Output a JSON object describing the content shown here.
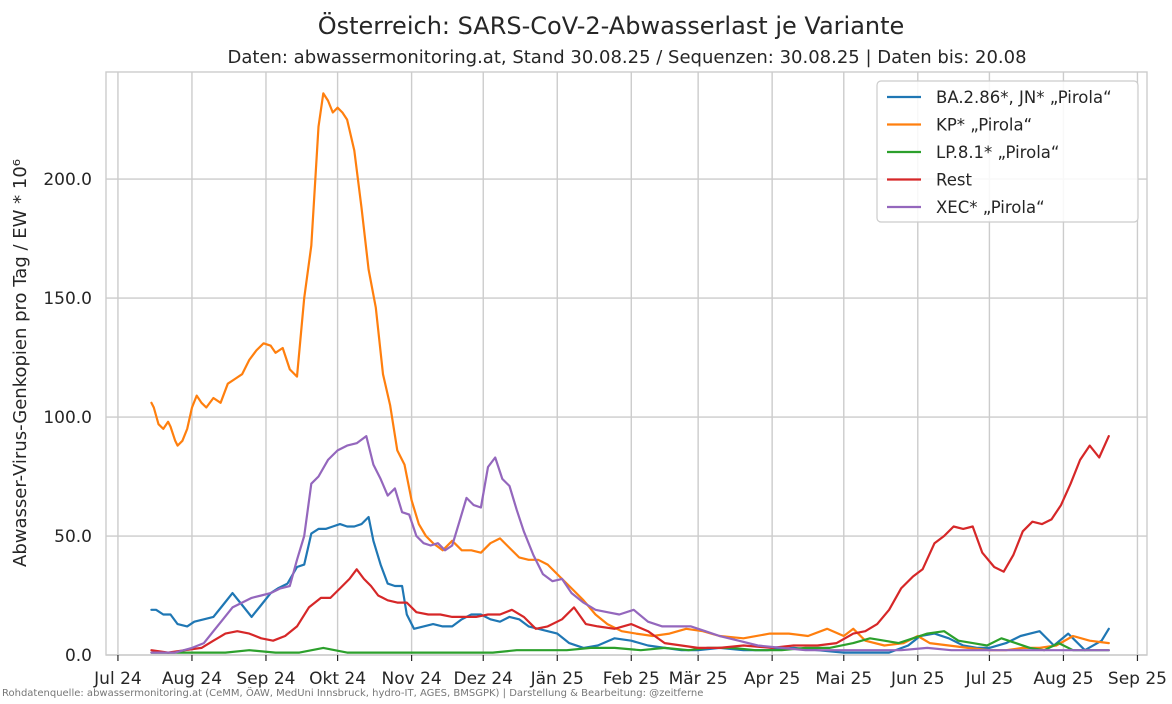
{
  "chart_data": {
    "type": "line",
    "title": "Österreich: SARS-CoV-2-Abwasserlast je Variante",
    "subtitle": "Daten: abwassermonitoring.at, Stand 30.08.25 / Sequenzen: 30.08.25 | Daten bis: 20.08",
    "ylabel": "Abwasser-Virus-Genkopien pro Tag / EW * 10⁶",
    "xlabel": "",
    "source_note": "Rohdatenquelle: abwassermonitoring.at (CeMM, ÖAW, MedUni Innsbruck, hydro-IT, AGES, BMSGPK) | Darstellung & Bearbeitung: @zeitferne",
    "xlim": [
      "2024-06-26",
      "2025-09-05"
    ],
    "ylim": [
      0,
      245
    ],
    "x_ticks": [
      {
        "date": "2024-07-01",
        "label": "Jul 24"
      },
      {
        "date": "2024-08-01",
        "label": "Aug 24"
      },
      {
        "date": "2024-09-01",
        "label": "Sep 24"
      },
      {
        "date": "2024-10-01",
        "label": "Okt 24"
      },
      {
        "date": "2024-11-01",
        "label": "Nov 24"
      },
      {
        "date": "2024-12-01",
        "label": "Dez 24"
      },
      {
        "date": "2025-01-01",
        "label": "Jän 25"
      },
      {
        "date": "2025-02-01",
        "label": "Feb 25"
      },
      {
        "date": "2025-03-01",
        "label": "Mär 25"
      },
      {
        "date": "2025-04-01",
        "label": "Apr 25"
      },
      {
        "date": "2025-05-01",
        "label": "Mai 25"
      },
      {
        "date": "2025-06-01",
        "label": "Jun 25"
      },
      {
        "date": "2025-07-01",
        "label": "Jul 25"
      },
      {
        "date": "2025-08-01",
        "label": "Aug 25"
      },
      {
        "date": "2025-09-01",
        "label": "Sep 25"
      }
    ],
    "y_ticks": [
      {
        "value": 0,
        "label": "0.0"
      },
      {
        "value": 50,
        "label": "50.0"
      },
      {
        "value": 100,
        "label": "100.0"
      },
      {
        "value": 150,
        "label": "150.0"
      },
      {
        "value": 200,
        "label": "200.0"
      }
    ],
    "grid": true,
    "legend_position": "top-right",
    "series": [
      {
        "name": "BA.2.86*, JN* „Pirola“",
        "color": "#1f77b4",
        "x": [
          "2024-07-15",
          "2024-07-17",
          "2024-07-20",
          "2024-07-23",
          "2024-07-26",
          "2024-07-30",
          "2024-08-02",
          "2024-08-06",
          "2024-08-10",
          "2024-08-14",
          "2024-08-18",
          "2024-08-22",
          "2024-08-26",
          "2024-08-30",
          "2024-09-03",
          "2024-09-06",
          "2024-09-10",
          "2024-09-14",
          "2024-09-17",
          "2024-09-20",
          "2024-09-23",
          "2024-09-26",
          "2024-09-29",
          "2024-10-02",
          "2024-10-05",
          "2024-10-08",
          "2024-10-11",
          "2024-10-14",
          "2024-10-16",
          "2024-10-19",
          "2024-10-22",
          "2024-10-25",
          "2024-10-28",
          "2024-10-30",
          "2024-11-02",
          "2024-11-06",
          "2024-11-10",
          "2024-11-14",
          "2024-11-18",
          "2024-11-22",
          "2024-11-26",
          "2024-11-30",
          "2024-12-04",
          "2024-12-08",
          "2024-12-12",
          "2024-12-16",
          "2024-12-20",
          "2024-12-24",
          "2024-12-28",
          "2025-01-01",
          "2025-01-06",
          "2025-01-12",
          "2025-01-18",
          "2025-01-25",
          "2025-02-01",
          "2025-02-08",
          "2025-02-15",
          "2025-02-22",
          "2025-03-01",
          "2025-03-10",
          "2025-03-20",
          "2025-03-30",
          "2025-04-10",
          "2025-04-20",
          "2025-05-01",
          "2025-05-10",
          "2025-05-20",
          "2025-05-28",
          "2025-06-02",
          "2025-06-08",
          "2025-06-14",
          "2025-06-20",
          "2025-06-26",
          "2025-07-01",
          "2025-07-08",
          "2025-07-14",
          "2025-07-22",
          "2025-07-28",
          "2025-08-03",
          "2025-08-10",
          "2025-08-17",
          "2025-08-20"
        ],
        "values": [
          19,
          19,
          17,
          17,
          13,
          12,
          14,
          15,
          16,
          21,
          26,
          21,
          16,
          21,
          26,
          28,
          30,
          37,
          38,
          51,
          53,
          53,
          54,
          55,
          54,
          54,
          55,
          58,
          48,
          38,
          30,
          29,
          29,
          17,
          11,
          12,
          13,
          12,
          12,
          15,
          17,
          17,
          15,
          14,
          16,
          15,
          12,
          11,
          10,
          9,
          5,
          3,
          4,
          7,
          6,
          4,
          3,
          2,
          2,
          3,
          2,
          2,
          3,
          2,
          1,
          1,
          1,
          4,
          8,
          9,
          7,
          4,
          3,
          3,
          5,
          8,
          10,
          4,
          9,
          2,
          6,
          11
        ]
      },
      {
        "name": "KP* „Pirola“",
        "color": "#ff7f0e",
        "x": [
          "2024-07-15",
          "2024-07-16",
          "2024-07-18",
          "2024-07-20",
          "2024-07-22",
          "2024-07-23",
          "2024-07-25",
          "2024-07-26",
          "2024-07-28",
          "2024-07-30",
          "2024-08-01",
          "2024-08-03",
          "2024-08-05",
          "2024-08-07",
          "2024-08-10",
          "2024-08-13",
          "2024-08-16",
          "2024-08-19",
          "2024-08-22",
          "2024-08-25",
          "2024-08-28",
          "2024-08-31",
          "2024-09-03",
          "2024-09-05",
          "2024-09-08",
          "2024-09-11",
          "2024-09-14",
          "2024-09-17",
          "2024-09-20",
          "2024-09-23",
          "2024-09-25",
          "2024-09-27",
          "2024-09-29",
          "2024-10-01",
          "2024-10-03",
          "2024-10-05",
          "2024-10-08",
          "2024-10-11",
          "2024-10-14",
          "2024-10-17",
          "2024-10-20",
          "2024-10-23",
          "2024-10-26",
          "2024-10-29",
          "2024-11-01",
          "2024-11-04",
          "2024-11-07",
          "2024-11-10",
          "2024-11-14",
          "2024-11-18",
          "2024-11-22",
          "2024-11-26",
          "2024-11-30",
          "2024-12-04",
          "2024-12-08",
          "2024-12-12",
          "2024-12-16",
          "2024-12-20",
          "2024-12-24",
          "2024-12-28",
          "2025-01-02",
          "2025-01-07",
          "2025-01-12",
          "2025-01-17",
          "2025-01-22",
          "2025-01-28",
          "2025-02-03",
          "2025-02-10",
          "2025-02-17",
          "2025-02-24",
          "2025-03-03",
          "2025-03-10",
          "2025-03-20",
          "2025-03-31",
          "2025-04-08",
          "2025-04-16",
          "2025-04-24",
          "2025-05-01",
          "2025-05-05",
          "2025-05-10",
          "2025-05-18",
          "2025-05-26",
          "2025-06-01",
          "2025-06-06",
          "2025-06-14",
          "2025-06-22",
          "2025-07-01",
          "2025-07-08",
          "2025-07-15",
          "2025-07-22",
          "2025-07-29",
          "2025-08-05",
          "2025-08-12",
          "2025-08-20"
        ],
        "values": [
          106,
          104,
          97,
          95,
          98,
          96,
          90,
          88,
          90,
          95,
          104,
          109,
          106,
          104,
          108,
          106,
          114,
          116,
          118,
          124,
          128,
          131,
          130,
          127,
          129,
          120,
          117,
          150,
          172,
          222,
          236,
          233,
          228,
          230,
          228,
          225,
          212,
          188,
          162,
          146,
          118,
          105,
          86,
          80,
          65,
          55,
          50,
          47,
          44,
          48,
          44,
          44,
          43,
          47,
          49,
          45,
          41,
          40,
          40,
          38,
          33,
          28,
          23,
          17,
          13,
          10,
          9,
          8,
          9,
          11,
          10,
          8,
          7,
          9,
          9,
          8,
          11,
          8,
          11,
          6,
          4,
          5,
          8,
          5,
          4,
          3,
          2,
          2,
          3,
          3,
          4,
          8,
          6,
          5
        ]
      },
      {
        "name": "LP.8.1* „Pirola“",
        "color": "#2ca02c",
        "x": [
          "2024-07-15",
          "2024-07-25",
          "2024-08-05",
          "2024-08-15",
          "2024-08-25",
          "2024-09-05",
          "2024-09-15",
          "2024-09-25",
          "2024-10-05",
          "2024-10-15",
          "2024-10-25",
          "2024-11-05",
          "2024-11-15",
          "2024-11-25",
          "2024-12-05",
          "2024-12-15",
          "2024-12-25",
          "2025-01-05",
          "2025-01-15",
          "2025-01-25",
          "2025-02-05",
          "2025-02-15",
          "2025-02-25",
          "2025-03-05",
          "2025-03-15",
          "2025-03-25",
          "2025-04-05",
          "2025-04-15",
          "2025-04-25",
          "2025-05-05",
          "2025-05-12",
          "2025-05-18",
          "2025-05-24",
          "2025-05-30",
          "2025-06-05",
          "2025-06-12",
          "2025-06-18",
          "2025-06-24",
          "2025-06-30",
          "2025-07-06",
          "2025-07-12",
          "2025-07-18",
          "2025-07-24",
          "2025-07-30",
          "2025-08-05",
          "2025-08-12",
          "2025-08-20"
        ],
        "values": [
          1,
          1,
          1,
          1,
          2,
          1,
          1,
          3,
          1,
          1,
          1,
          1,
          1,
          1,
          1,
          2,
          2,
          2,
          3,
          3,
          2,
          3,
          2,
          3,
          3,
          2,
          2,
          3,
          3,
          5,
          7,
          6,
          5,
          7,
          9,
          10,
          6,
          5,
          4,
          7,
          5,
          3,
          2,
          5,
          2,
          2,
          2
        ]
      },
      {
        "name": "Rest",
        "color": "#d62728",
        "x": [
          "2024-07-15",
          "2024-07-22",
          "2024-07-29",
          "2024-08-05",
          "2024-08-10",
          "2024-08-15",
          "2024-08-20",
          "2024-08-25",
          "2024-08-30",
          "2024-09-04",
          "2024-09-09",
          "2024-09-14",
          "2024-09-19",
          "2024-09-24",
          "2024-09-28",
          "2024-10-02",
          "2024-10-06",
          "2024-10-09",
          "2024-10-12",
          "2024-10-15",
          "2024-10-18",
          "2024-10-22",
          "2024-10-26",
          "2024-10-30",
          "2024-11-03",
          "2024-11-08",
          "2024-11-13",
          "2024-11-18",
          "2024-11-23",
          "2024-11-28",
          "2024-12-03",
          "2024-12-08",
          "2024-12-13",
          "2024-12-18",
          "2024-12-23",
          "2024-12-28",
          "2025-01-03",
          "2025-01-08",
          "2025-01-13",
          "2025-01-18",
          "2025-01-25",
          "2025-02-01",
          "2025-02-08",
          "2025-02-15",
          "2025-02-22",
          "2025-03-01",
          "2025-03-10",
          "2025-03-20",
          "2025-04-01",
          "2025-04-10",
          "2025-04-20",
          "2025-04-28",
          "2025-05-05",
          "2025-05-10",
          "2025-05-15",
          "2025-05-20",
          "2025-05-25",
          "2025-05-30",
          "2025-06-03",
          "2025-06-08",
          "2025-06-12",
          "2025-06-16",
          "2025-06-20",
          "2025-06-24",
          "2025-06-28",
          "2025-07-03",
          "2025-07-07",
          "2025-07-11",
          "2025-07-15",
          "2025-07-19",
          "2025-07-23",
          "2025-07-27",
          "2025-07-31",
          "2025-08-04",
          "2025-08-08",
          "2025-08-12",
          "2025-08-16",
          "2025-08-20"
        ],
        "values": [
          2,
          1,
          2,
          3,
          6,
          9,
          10,
          9,
          7,
          6,
          8,
          12,
          20,
          24,
          24,
          28,
          32,
          36,
          32,
          29,
          25,
          23,
          22,
          22,
          18,
          17,
          17,
          16,
          16,
          16,
          17,
          17,
          19,
          16,
          11,
          12,
          15,
          20,
          13,
          12,
          11,
          13,
          10,
          5,
          4,
          3,
          3,
          4,
          3,
          4,
          4,
          5,
          9,
          10,
          13,
          19,
          28,
          33,
          36,
          47,
          50,
          54,
          53,
          54,
          43,
          37,
          35,
          42,
          52,
          56,
          55,
          57,
          63,
          72,
          82,
          88,
          83,
          92
        ]
      },
      {
        "name": "XEC* „Pirola“",
        "color": "#9467bd",
        "x": [
          "2024-07-15",
          "2024-07-25",
          "2024-08-01",
          "2024-08-06",
          "2024-08-10",
          "2024-08-14",
          "2024-08-18",
          "2024-08-22",
          "2024-08-26",
          "2024-08-30",
          "2024-09-03",
          "2024-09-07",
          "2024-09-11",
          "2024-09-14",
          "2024-09-17",
          "2024-09-20",
          "2024-09-23",
          "2024-09-27",
          "2024-10-01",
          "2024-10-05",
          "2024-10-09",
          "2024-10-13",
          "2024-10-16",
          "2024-10-19",
          "2024-10-22",
          "2024-10-25",
          "2024-10-28",
          "2024-10-31",
          "2024-11-03",
          "2024-11-06",
          "2024-11-09",
          "2024-11-12",
          "2024-11-15",
          "2024-11-18",
          "2024-11-21",
          "2024-11-24",
          "2024-11-27",
          "2024-11-30",
          "2024-12-03",
          "2024-12-06",
          "2024-12-09",
          "2024-12-12",
          "2024-12-15",
          "2024-12-18",
          "2024-12-22",
          "2024-12-26",
          "2024-12-30",
          "2025-01-03",
          "2025-01-07",
          "2025-01-12",
          "2025-01-17",
          "2025-01-22",
          "2025-01-27",
          "2025-02-02",
          "2025-02-08",
          "2025-02-14",
          "2025-02-20",
          "2025-02-26",
          "2025-03-04",
          "2025-03-10",
          "2025-03-18",
          "2025-03-26",
          "2025-04-05",
          "2025-04-15",
          "2025-04-25",
          "2025-05-05",
          "2025-05-15",
          "2025-05-25",
          "2025-06-05",
          "2025-06-15",
          "2025-06-25",
          "2025-07-05",
          "2025-07-15",
          "2025-07-25",
          "2025-08-05",
          "2025-08-20"
        ],
        "values": [
          1,
          1,
          3,
          5,
          10,
          15,
          20,
          22,
          24,
          25,
          26,
          28,
          29,
          40,
          50,
          72,
          75,
          82,
          86,
          88,
          89,
          92,
          80,
          74,
          67,
          70,
          60,
          59,
          50,
          47,
          46,
          47,
          44,
          46,
          56,
          66,
          63,
          62,
          79,
          83,
          74,
          71,
          61,
          52,
          42,
          34,
          31,
          32,
          26,
          22,
          19,
          18,
          17,
          19,
          14,
          12,
          12,
          12,
          10,
          8,
          6,
          4,
          3,
          2,
          2,
          2,
          2,
          2,
          3,
          2,
          2,
          2,
          2,
          2,
          2,
          2
        ]
      }
    ]
  }
}
